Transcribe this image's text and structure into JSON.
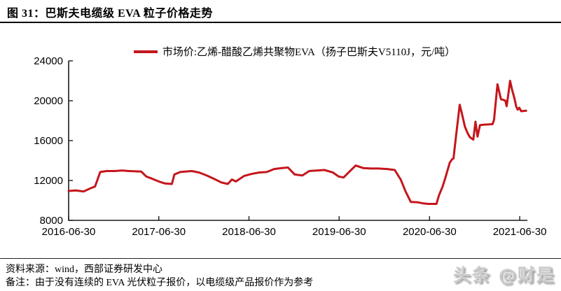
{
  "figure": {
    "title": "图 31：巴斯夫电缆级 EVA 粒子价格走势",
    "source": "资料来源：wind，西部证券研发中心",
    "note": "备注：由于没有连续的 EVA 光伏粒子报价，以电缆级产品报价作为参考",
    "watermark": "头条 @财是"
  },
  "chart_data": {
    "type": "line",
    "title": "",
    "xlabel": "",
    "ylabel": "",
    "unit": "元/吨",
    "legend_position": "top-center",
    "grid": false,
    "axis_color": "#1a1a1a",
    "ylim": [
      8000,
      24000
    ],
    "y_ticks": [
      8000,
      12000,
      16000,
      20000,
      24000
    ],
    "xlim": [
      "2016-06-30",
      "2021-07-31"
    ],
    "x_ticks": [
      "2016-06-30",
      "2017-06-30",
      "2018-06-30",
      "2019-06-30",
      "2020-06-30",
      "2021-06-30"
    ],
    "legend": [
      {
        "label": "市场价:乙烯-醋酸乙烯共聚物EVA（扬子巴斯夫V5110J，元/吨）",
        "color": "#c4161c"
      }
    ],
    "series": [
      {
        "name": "市场价:乙烯-醋酸乙烯共聚物EVA（扬子巴斯夫V5110J，元/吨）",
        "color": "#c4161c",
        "points": [
          [
            "2016-06-30",
            10950
          ],
          [
            "2016-07-30",
            11000
          ],
          [
            "2016-08-30",
            10900
          ],
          [
            "2016-09-25",
            11200
          ],
          [
            "2016-10-15",
            11400
          ],
          [
            "2016-11-05",
            12850
          ],
          [
            "2016-12-01",
            12950
          ],
          [
            "2017-01-01",
            12950
          ],
          [
            "2017-02-01",
            13000
          ],
          [
            "2017-03-01",
            12950
          ],
          [
            "2017-04-20",
            12900
          ],
          [
            "2017-05-10",
            12400
          ],
          [
            "2017-06-01",
            12200
          ],
          [
            "2017-06-30",
            11900
          ],
          [
            "2017-07-25",
            11700
          ],
          [
            "2017-08-22",
            11650
          ],
          [
            "2017-09-01",
            12600
          ],
          [
            "2017-09-25",
            12850
          ],
          [
            "2017-11-10",
            12950
          ],
          [
            "2017-12-10",
            12800
          ],
          [
            "2018-01-10",
            12500
          ],
          [
            "2018-02-10",
            12150
          ],
          [
            "2018-03-10",
            11800
          ],
          [
            "2018-04-05",
            11650
          ],
          [
            "2018-04-22",
            12100
          ],
          [
            "2018-05-08",
            11900
          ],
          [
            "2018-06-10",
            12450
          ],
          [
            "2018-07-10",
            12650
          ],
          [
            "2018-08-10",
            12800
          ],
          [
            "2018-09-10",
            12850
          ],
          [
            "2018-10-10",
            13150
          ],
          [
            "2018-11-10",
            13250
          ],
          [
            "2018-12-05",
            13300
          ],
          [
            "2019-01-01",
            12600
          ],
          [
            "2019-02-01",
            12500
          ],
          [
            "2019-03-01",
            12950
          ],
          [
            "2019-04-01",
            13000
          ],
          [
            "2019-05-01",
            13050
          ],
          [
            "2019-06-05",
            12800
          ],
          [
            "2019-06-28",
            12400
          ],
          [
            "2019-07-18",
            12300
          ],
          [
            "2019-08-15",
            13000
          ],
          [
            "2019-09-05",
            13500
          ],
          [
            "2019-10-05",
            13250
          ],
          [
            "2019-11-05",
            13200
          ],
          [
            "2019-12-05",
            13200
          ],
          [
            "2020-01-10",
            13150
          ],
          [
            "2020-02-10",
            13050
          ],
          [
            "2020-03-05",
            12100
          ],
          [
            "2020-03-25",
            10900
          ],
          [
            "2020-04-15",
            9850
          ],
          [
            "2020-05-15",
            9800
          ],
          [
            "2020-06-05",
            9700
          ],
          [
            "2020-06-25",
            9650
          ],
          [
            "2020-07-28",
            9650
          ],
          [
            "2020-08-07",
            10500
          ],
          [
            "2020-08-22",
            11400
          ],
          [
            "2020-08-31",
            12100
          ],
          [
            "2020-09-20",
            13800
          ],
          [
            "2020-09-30",
            14150
          ],
          [
            "2020-10-05",
            14200
          ],
          [
            "2020-10-14",
            16200
          ],
          [
            "2020-10-30",
            19600
          ],
          [
            "2020-11-10",
            18500
          ],
          [
            "2020-11-20",
            17400
          ],
          [
            "2020-11-30",
            16800
          ],
          [
            "2020-12-10",
            16350
          ],
          [
            "2020-12-24",
            16100
          ],
          [
            "2021-01-02",
            17900
          ],
          [
            "2021-01-10",
            16400
          ],
          [
            "2021-01-20",
            17550
          ],
          [
            "2021-02-05",
            17600
          ],
          [
            "2021-03-12",
            17650
          ],
          [
            "2021-03-18",
            18100
          ],
          [
            "2021-04-01",
            21650
          ],
          [
            "2021-04-15",
            20150
          ],
          [
            "2021-04-24",
            20100
          ],
          [
            "2021-05-03",
            20000
          ],
          [
            "2021-05-08",
            19450
          ],
          [
            "2021-05-14",
            20500
          ],
          [
            "2021-05-22",
            22000
          ],
          [
            "2021-05-31",
            21000
          ],
          [
            "2021-06-08",
            20300
          ],
          [
            "2021-06-16",
            19400
          ],
          [
            "2021-06-22",
            19100
          ],
          [
            "2021-06-28",
            19300
          ],
          [
            "2021-07-06",
            18950
          ],
          [
            "2021-07-26",
            19000
          ]
        ]
      }
    ]
  }
}
